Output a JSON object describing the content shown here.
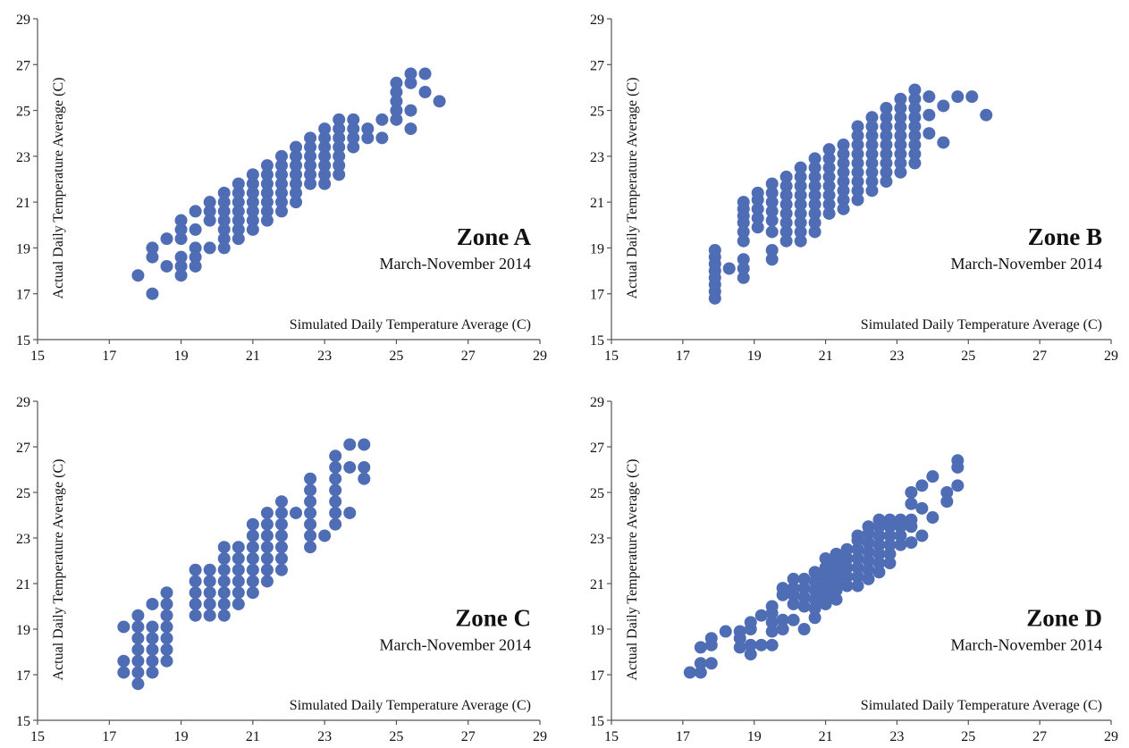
{
  "chart_data": [
    {
      "type": "scatter",
      "title": "Zone A",
      "subtitle": "March-November 2014",
      "xlabel": "Simulated Daily Temperature Average (C)",
      "ylabel": "Actual Daily Temperature Average (C)",
      "xlim": [
        15,
        29
      ],
      "ylim": [
        15,
        29
      ],
      "xticks": [
        "15",
        "17",
        "19",
        "21",
        "23",
        "25",
        "27",
        "29"
      ],
      "yticks": [
        "15",
        "17",
        "19",
        "21",
        "23",
        "25",
        "27",
        "29"
      ],
      "grid": false,
      "marker_color": "#4f6db5",
      "clusters": [
        {
          "x": 17.8,
          "y": [
            17.8
          ]
        },
        {
          "x": 18.2,
          "y": [
            17.0,
            18.6,
            19.0
          ]
        },
        {
          "x": 18.6,
          "y": [
            18.2,
            19.4
          ]
        },
        {
          "x": 19.0,
          "y": [
            17.8,
            18.2,
            18.6,
            19.4,
            19.8,
            20.2
          ]
        },
        {
          "x": 19.4,
          "y": [
            18.2,
            18.6,
            19.0,
            19.8,
            20.6
          ]
        },
        {
          "x": 19.8,
          "y": [
            19.0,
            20.2,
            20.6,
            21.0
          ]
        },
        {
          "x": 20.2,
          "y": [
            19.0,
            19.4,
            19.8,
            20.2,
            20.6,
            21.0,
            21.4
          ]
        },
        {
          "x": 20.6,
          "y": [
            19.4,
            19.8,
            20.2,
            20.6,
            21.0,
            21.4,
            21.8
          ]
        },
        {
          "x": 21.0,
          "y": [
            19.8,
            20.2,
            20.6,
            21.0,
            21.4,
            21.8,
            22.2
          ]
        },
        {
          "x": 21.4,
          "y": [
            20.2,
            20.6,
            21.0,
            21.4,
            21.8,
            22.2,
            22.6
          ]
        },
        {
          "x": 21.8,
          "y": [
            20.6,
            21.0,
            21.4,
            21.8,
            22.2,
            22.6,
            23.0
          ]
        },
        {
          "x": 22.2,
          "y": [
            21.0,
            21.4,
            21.8,
            22.2,
            22.6,
            23.0,
            23.4
          ]
        },
        {
          "x": 22.6,
          "y": [
            21.8,
            22.2,
            22.6,
            23.0,
            23.4,
            23.8
          ]
        },
        {
          "x": 23.0,
          "y": [
            21.8,
            22.2,
            22.6,
            23.0,
            23.4,
            23.8,
            24.2
          ]
        },
        {
          "x": 23.4,
          "y": [
            22.2,
            22.6,
            23.0,
            23.4,
            23.8,
            24.2,
            24.6
          ]
        },
        {
          "x": 23.8,
          "y": [
            23.4,
            23.8,
            24.2,
            24.6
          ]
        },
        {
          "x": 24.2,
          "y": [
            23.8,
            24.2
          ]
        },
        {
          "x": 24.6,
          "y": [
            23.8,
            24.6
          ]
        },
        {
          "x": 25.0,
          "y": [
            24.6,
            25.0,
            25.4,
            25.8,
            26.2
          ]
        },
        {
          "x": 25.4,
          "y": [
            24.2,
            25.0,
            26.2,
            26.6
          ]
        },
        {
          "x": 25.8,
          "y": [
            25.8,
            26.6
          ]
        },
        {
          "x": 26.2,
          "y": [
            25.4
          ]
        }
      ]
    },
    {
      "type": "scatter",
      "title": "Zone B",
      "subtitle": "March-November 2014",
      "xlabel": "Simulated Daily Temperature Average (C)",
      "ylabel": "Actual Daily Temperature Average (C)",
      "xlim": [
        15,
        29
      ],
      "ylim": [
        15,
        29
      ],
      "xticks": [
        "15",
        "17",
        "19",
        "21",
        "23",
        "25",
        "27",
        "29"
      ],
      "yticks": [
        "15",
        "17",
        "19",
        "21",
        "23",
        "25",
        "27",
        "29"
      ],
      "grid": false,
      "marker_color": "#4f6db5",
      "clusters": [
        {
          "x": 17.9,
          "y": [
            16.8,
            17.1,
            17.4,
            17.7,
            18.0,
            18.3,
            18.6,
            18.9
          ]
        },
        {
          "x": 18.3,
          "y": [
            18.1
          ]
        },
        {
          "x": 18.7,
          "y": [
            17.7,
            18.1,
            18.5,
            19.3,
            19.7,
            20.1,
            20.4,
            20.7,
            21.0
          ]
        },
        {
          "x": 19.1,
          "y": [
            19.9,
            20.3,
            20.7,
            21.1,
            21.4
          ]
        },
        {
          "x": 19.5,
          "y": [
            18.5,
            18.9,
            19.7,
            20.2,
            20.6,
            21.0,
            21.4,
            21.8
          ]
        },
        {
          "x": 19.9,
          "y": [
            19.3,
            19.7,
            20.1,
            20.5,
            20.9,
            21.3,
            21.7,
            22.1
          ]
        },
        {
          "x": 20.3,
          "y": [
            19.3,
            19.7,
            20.1,
            20.5,
            20.9,
            21.3,
            21.7,
            22.1,
            22.5
          ]
        },
        {
          "x": 20.7,
          "y": [
            19.7,
            20.1,
            20.5,
            20.9,
            21.3,
            21.7,
            22.1,
            22.5,
            22.9
          ]
        },
        {
          "x": 21.1,
          "y": [
            20.5,
            20.9,
            21.3,
            21.7,
            22.1,
            22.5,
            22.9,
            23.3
          ]
        },
        {
          "x": 21.5,
          "y": [
            20.7,
            21.1,
            21.5,
            21.9,
            22.3,
            22.7,
            23.1,
            23.5
          ]
        },
        {
          "x": 21.9,
          "y": [
            21.1,
            21.5,
            21.9,
            22.3,
            22.7,
            23.1,
            23.5,
            23.9,
            24.3
          ]
        },
        {
          "x": 22.3,
          "y": [
            21.5,
            21.9,
            22.3,
            22.7,
            23.1,
            23.5,
            23.9,
            24.3,
            24.7
          ]
        },
        {
          "x": 22.7,
          "y": [
            21.9,
            22.3,
            22.7,
            23.1,
            23.5,
            23.9,
            24.3,
            24.7,
            25.1
          ]
        },
        {
          "x": 23.1,
          "y": [
            22.3,
            22.7,
            23.1,
            23.5,
            23.9,
            24.3,
            24.7,
            25.1,
            25.5
          ]
        },
        {
          "x": 23.5,
          "y": [
            22.7,
            23.1,
            23.5,
            23.9,
            24.3,
            24.7,
            25.1,
            25.5,
            25.9
          ]
        },
        {
          "x": 23.9,
          "y": [
            24.0,
            24.8,
            25.6
          ]
        },
        {
          "x": 24.3,
          "y": [
            23.6,
            25.2
          ]
        },
        {
          "x": 24.7,
          "y": [
            25.6
          ]
        },
        {
          "x": 25.1,
          "y": [
            25.6
          ]
        },
        {
          "x": 25.5,
          "y": [
            24.8
          ]
        }
      ]
    },
    {
      "type": "scatter",
      "title": "Zone C",
      "subtitle": "March-November 2014",
      "xlabel": "Simulated Daily Temperature Average (C)",
      "ylabel": "Actual Daily Temperature Average (C)",
      "xlim": [
        15,
        29
      ],
      "ylim": [
        15,
        29
      ],
      "xticks": [
        "15",
        "17",
        "19",
        "21",
        "23",
        "25",
        "27",
        "29"
      ],
      "yticks": [
        "15",
        "17",
        "19",
        "21",
        "23",
        "25",
        "27",
        "29"
      ],
      "grid": false,
      "marker_color": "#4f6db5",
      "clusters": [
        {
          "x": 17.4,
          "y": [
            17.1,
            17.6,
            19.1
          ]
        },
        {
          "x": 17.8,
          "y": [
            16.6,
            17.1,
            17.6,
            18.1,
            18.6,
            19.1,
            19.6
          ]
        },
        {
          "x": 18.2,
          "y": [
            17.1,
            17.6,
            18.1,
            18.6,
            19.1,
            20.1
          ]
        },
        {
          "x": 18.6,
          "y": [
            17.6,
            18.1,
            18.6,
            19.1,
            19.6,
            20.1,
            20.6
          ]
        },
        {
          "x": 19.4,
          "y": [
            19.6,
            20.1,
            20.6,
            21.1,
            21.6
          ]
        },
        {
          "x": 19.8,
          "y": [
            19.6,
            20.1,
            20.6,
            21.1,
            21.6
          ]
        },
        {
          "x": 20.2,
          "y": [
            19.6,
            20.1,
            20.6,
            21.1,
            21.6,
            22.1,
            22.6
          ]
        },
        {
          "x": 20.6,
          "y": [
            20.1,
            20.6,
            21.1,
            21.6,
            22.1,
            22.6
          ]
        },
        {
          "x": 21.0,
          "y": [
            20.6,
            21.1,
            21.6,
            22.1,
            22.6,
            23.1,
            23.6
          ]
        },
        {
          "x": 21.4,
          "y": [
            21.1,
            21.6,
            22.1,
            22.6,
            23.1,
            23.6,
            24.1
          ]
        },
        {
          "x": 21.8,
          "y": [
            21.6,
            22.1,
            22.6,
            23.1,
            23.6,
            24.1,
            24.6
          ]
        },
        {
          "x": 22.2,
          "y": [
            24.1
          ]
        },
        {
          "x": 22.6,
          "y": [
            22.6,
            23.1,
            23.6,
            24.1,
            24.6,
            25.1,
            25.6
          ]
        },
        {
          "x": 23.0,
          "y": [
            23.1
          ]
        },
        {
          "x": 23.3,
          "y": [
            23.6,
            24.1,
            24.6,
            25.1,
            25.6,
            26.1,
            26.6
          ]
        },
        {
          "x": 23.7,
          "y": [
            24.1,
            26.1,
            27.1
          ]
        },
        {
          "x": 24.1,
          "y": [
            25.6,
            26.1,
            27.1
          ]
        }
      ]
    },
    {
      "type": "scatter",
      "title": "Zone D",
      "subtitle": "March-November 2014",
      "xlabel": "Simulated Daily Temperature Average (C)",
      "ylabel": "Actual Daily Temperature Average (C)",
      "xlim": [
        15,
        29
      ],
      "ylim": [
        15,
        29
      ],
      "xticks": [
        "15",
        "17",
        "19",
        "21",
        "23",
        "25",
        "27",
        "29"
      ],
      "yticks": [
        "15",
        "17",
        "19",
        "21",
        "23",
        "25",
        "27",
        "29"
      ],
      "grid": false,
      "marker_color": "#4f6db5",
      "clusters": [
        {
          "x": 17.2,
          "y": [
            17.1
          ]
        },
        {
          "x": 17.5,
          "y": [
            17.1,
            17.5,
            18.2
          ]
        },
        {
          "x": 17.8,
          "y": [
            17.5,
            18.3,
            18.6
          ]
        },
        {
          "x": 18.2,
          "y": [
            18.9
          ]
        },
        {
          "x": 18.6,
          "y": [
            18.2,
            18.6,
            18.9
          ]
        },
        {
          "x": 18.9,
          "y": [
            17.9,
            18.3,
            19.0,
            19.3
          ]
        },
        {
          "x": 19.2,
          "y": [
            18.3,
            19.6
          ]
        },
        {
          "x": 19.5,
          "y": [
            18.3,
            18.9,
            19.3,
            19.7,
            20.0
          ]
        },
        {
          "x": 19.8,
          "y": [
            19.0,
            19.4,
            20.5,
            20.8
          ]
        },
        {
          "x": 20.1,
          "y": [
            19.4,
            20.1,
            20.5,
            20.8,
            21.2
          ]
        },
        {
          "x": 20.4,
          "y": [
            19.0,
            20.0,
            20.4,
            20.8,
            21.2
          ]
        },
        {
          "x": 20.7,
          "y": [
            19.5,
            19.9,
            20.3,
            20.7,
            21.1,
            21.5
          ]
        },
        {
          "x": 21.0,
          "y": [
            20.1,
            20.5,
            20.9,
            21.3,
            21.7,
            22.1
          ]
        },
        {
          "x": 21.3,
          "y": [
            20.3,
            20.7,
            21.1,
            21.5,
            21.9,
            22.3
          ]
        },
        {
          "x": 21.6,
          "y": [
            20.9,
            21.3,
            21.7,
            22.1,
            22.5
          ]
        },
        {
          "x": 21.9,
          "y": [
            20.9,
            21.3,
            21.7,
            22.1,
            22.5,
            22.9,
            23.1
          ]
        },
        {
          "x": 22.2,
          "y": [
            21.2,
            21.6,
            22.0,
            22.4,
            22.8,
            23.2,
            23.5
          ]
        },
        {
          "x": 22.5,
          "y": [
            21.5,
            21.9,
            22.3,
            22.7,
            23.1,
            23.5,
            23.8
          ]
        },
        {
          "x": 22.8,
          "y": [
            21.9,
            22.3,
            22.7,
            23.1,
            23.5,
            23.8
          ]
        },
        {
          "x": 23.1,
          "y": [
            22.7,
            23.1,
            23.5,
            23.8
          ]
        },
        {
          "x": 23.4,
          "y": [
            22.8,
            23.5,
            23.8,
            24.5,
            25.0
          ]
        },
        {
          "x": 23.7,
          "y": [
            23.1,
            24.3,
            25.3
          ]
        },
        {
          "x": 24.0,
          "y": [
            23.9,
            25.7
          ]
        },
        {
          "x": 24.4,
          "y": [
            24.6,
            25.0
          ]
        },
        {
          "x": 24.7,
          "y": [
            25.3,
            26.1,
            26.4
          ]
        }
      ]
    }
  ]
}
